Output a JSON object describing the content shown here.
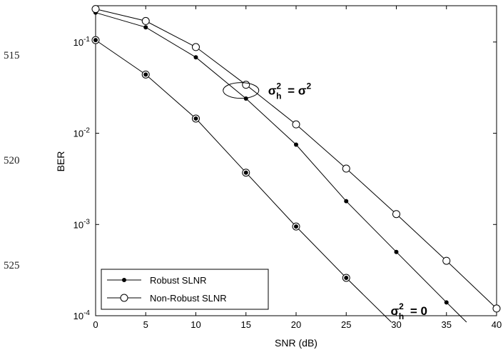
{
  "line_numbers": [
    "515",
    "520",
    "525"
  ],
  "chart_data": {
    "type": "line",
    "xlabel": "SNR (dB)",
    "ylabel": "BER",
    "xlim": [
      0,
      40
    ],
    "ylim": [
      0.0001,
      0.25
    ],
    "yscale": "log",
    "grid": false,
    "legend_position": "bottom-left",
    "x_ticks": [
      "0",
      "5",
      "10",
      "15",
      "20",
      "25",
      "30",
      "35",
      "40"
    ],
    "y_ticks": [
      {
        "base": "10",
        "exp": "-1"
      },
      {
        "base": "10",
        "exp": "-2"
      },
      {
        "base": "10",
        "exp": "-3"
      },
      {
        "base": "10",
        "exp": "-4"
      }
    ],
    "series": [
      {
        "name": "Robust SLNR",
        "marker": "dot",
        "group": "sigma_h^2 = sigma^2",
        "x": [
          0,
          5,
          10,
          15,
          20,
          25,
          30,
          35,
          37
        ],
        "y": [
          0.21,
          0.145,
          0.068,
          0.024,
          0.0075,
          0.0018,
          0.0005,
          0.00014,
          8.5e-05
        ]
      },
      {
        "name": "Non-Robust SLNR",
        "marker": "circle",
        "group": "sigma_h^2 = sigma^2",
        "x": [
          0,
          5,
          10,
          15,
          20,
          25,
          30,
          35,
          40
        ],
        "y": [
          0.23,
          0.17,
          0.088,
          0.034,
          0.0125,
          0.0041,
          0.0013,
          0.0004,
          0.00012
        ]
      },
      {
        "name": "",
        "marker": "both",
        "group": "sigma_h^2 = 0",
        "x": [
          0,
          5,
          10,
          15,
          20,
          25,
          29.5
        ],
        "y": [
          0.105,
          0.044,
          0.0145,
          0.0037,
          0.00095,
          0.00026,
          8.5e-05
        ]
      }
    ],
    "annotations": [
      {
        "label": "σ_h² = σ²",
        "base": "σ",
        "sub": "h",
        "sup": "2",
        "rhs": "= σ",
        "rhs_sup": "2",
        "at": [
          15,
          0.034
        ],
        "ellipse": true
      },
      {
        "label": "σ_h² = 0",
        "base": "σ",
        "sub": "h",
        "sup": "2",
        "rhs": "= 0",
        "rhs_sup": "",
        "at": [
          30,
          0.000115
        ],
        "ellipse": false
      }
    ],
    "legend": [
      {
        "label": "Robust SLNR",
        "marker": "dot"
      },
      {
        "label": "Non-Robust SLNR",
        "marker": "circle"
      }
    ]
  }
}
